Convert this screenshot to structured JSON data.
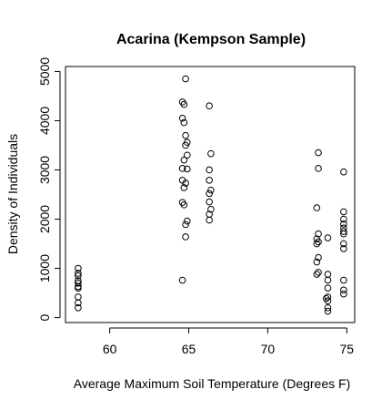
{
  "chart_data": {
    "type": "scatter",
    "title": "Acarina (Kempson Sample)",
    "xlabel": "Average Maximum Soil Temperature (Degrees F)",
    "ylabel": "Density of Individuals",
    "xlim": [
      57.2,
      75.5
    ],
    "ylim": [
      -100,
      5100
    ],
    "x_ticks": [
      60,
      65,
      70,
      75
    ],
    "y_ticks": [
      0,
      1000,
      2000,
      3000,
      4000,
      5000
    ],
    "grid": false,
    "legend": "none",
    "marker": "open-circle",
    "points": [
      {
        "x": 58,
        "y": 1000
      },
      {
        "x": 58,
        "y": 900
      },
      {
        "x": 58,
        "y": 850
      },
      {
        "x": 58,
        "y": 750
      },
      {
        "x": 58,
        "y": 700
      },
      {
        "x": 58,
        "y": 630
      },
      {
        "x": 58,
        "y": 600
      },
      {
        "x": 58,
        "y": 420
      },
      {
        "x": 58,
        "y": 300
      },
      {
        "x": 58,
        "y": 200
      },
      {
        "x": 64.8,
        "y": 4850
      },
      {
        "x": 64.6,
        "y": 4380
      },
      {
        "x": 64.7,
        "y": 4330
      },
      {
        "x": 64.6,
        "y": 4050
      },
      {
        "x": 64.7,
        "y": 3960
      },
      {
        "x": 64.8,
        "y": 3700
      },
      {
        "x": 64.9,
        "y": 3560
      },
      {
        "x": 64.8,
        "y": 3500
      },
      {
        "x": 64.9,
        "y": 3300
      },
      {
        "x": 64.7,
        "y": 3200
      },
      {
        "x": 64.6,
        "y": 3030
      },
      {
        "x": 64.9,
        "y": 3020
      },
      {
        "x": 64.6,
        "y": 2790
      },
      {
        "x": 64.8,
        "y": 2730
      },
      {
        "x": 64.7,
        "y": 2640
      },
      {
        "x": 64.6,
        "y": 2340
      },
      {
        "x": 64.7,
        "y": 2290
      },
      {
        "x": 64.9,
        "y": 1960
      },
      {
        "x": 64.8,
        "y": 1890
      },
      {
        "x": 64.8,
        "y": 1640
      },
      {
        "x": 64.6,
        "y": 760
      },
      {
        "x": 66.3,
        "y": 4300
      },
      {
        "x": 66.4,
        "y": 3330
      },
      {
        "x": 66.3,
        "y": 3000
      },
      {
        "x": 66.3,
        "y": 2790
      },
      {
        "x": 66.4,
        "y": 2590
      },
      {
        "x": 66.3,
        "y": 2520
      },
      {
        "x": 66.3,
        "y": 2350
      },
      {
        "x": 66.4,
        "y": 2200
      },
      {
        "x": 66.3,
        "y": 2100
      },
      {
        "x": 66.3,
        "y": 1980
      },
      {
        "x": 73.2,
        "y": 3350
      },
      {
        "x": 73.2,
        "y": 3030
      },
      {
        "x": 73.1,
        "y": 2230
      },
      {
        "x": 73.2,
        "y": 1700
      },
      {
        "x": 73.1,
        "y": 1600
      },
      {
        "x": 73.2,
        "y": 1540
      },
      {
        "x": 73.1,
        "y": 1500
      },
      {
        "x": 73.2,
        "y": 1220
      },
      {
        "x": 73.1,
        "y": 1130
      },
      {
        "x": 73.2,
        "y": 920
      },
      {
        "x": 73.1,
        "y": 880
      },
      {
        "x": 73.8,
        "y": 1620
      },
      {
        "x": 73.8,
        "y": 880
      },
      {
        "x": 73.8,
        "y": 760
      },
      {
        "x": 73.8,
        "y": 600
      },
      {
        "x": 73.8,
        "y": 420
      },
      {
        "x": 73.7,
        "y": 390
      },
      {
        "x": 73.8,
        "y": 340
      },
      {
        "x": 73.8,
        "y": 200
      },
      {
        "x": 73.8,
        "y": 130
      },
      {
        "x": 74.8,
        "y": 2960
      },
      {
        "x": 74.8,
        "y": 2150
      },
      {
        "x": 74.8,
        "y": 2000
      },
      {
        "x": 74.8,
        "y": 1900
      },
      {
        "x": 74.8,
        "y": 1820
      },
      {
        "x": 74.8,
        "y": 1750
      },
      {
        "x": 74.8,
        "y": 1700
      },
      {
        "x": 74.8,
        "y": 1500
      },
      {
        "x": 74.8,
        "y": 1400
      },
      {
        "x": 74.8,
        "y": 760
      },
      {
        "x": 74.8,
        "y": 560
      },
      {
        "x": 74.8,
        "y": 480
      }
    ]
  }
}
